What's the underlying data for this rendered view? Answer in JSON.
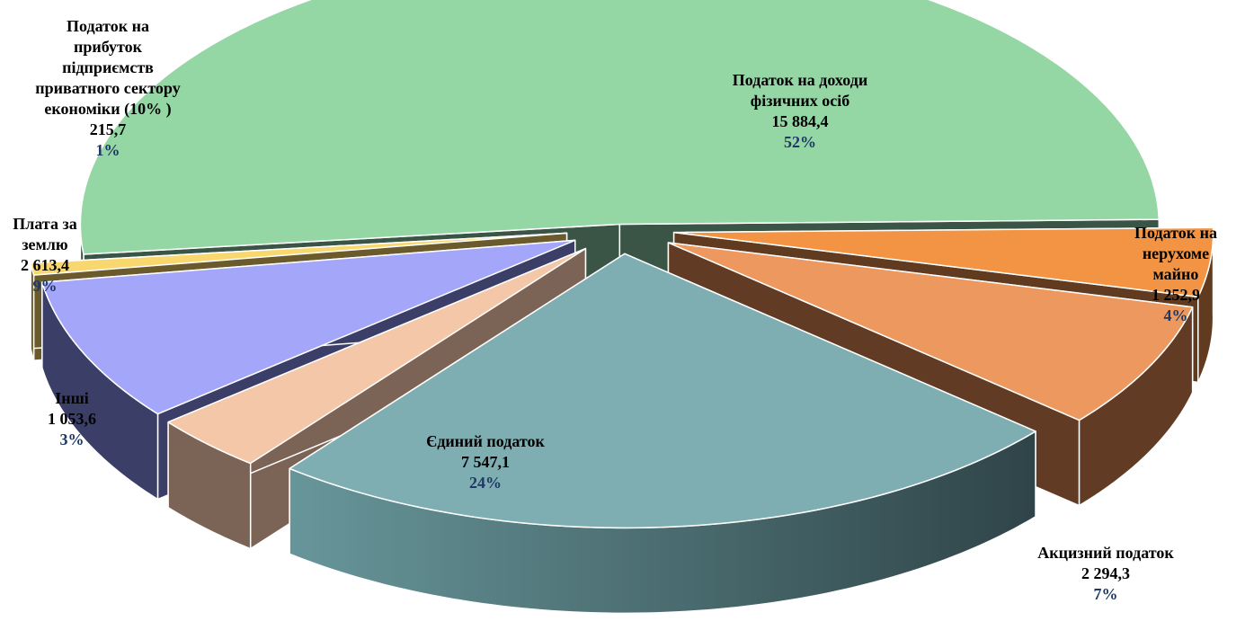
{
  "chart_data": {
    "type": "pie",
    "title": "",
    "slices": [
      {
        "name": "Податок на доходи фізичних осіб",
        "name_lines": [
          "Податок на доходи",
          "фізичних осіб"
        ],
        "value": 15884.4,
        "value_label": "15 884,4",
        "percent_label": "52%",
        "color": "#94D6A4",
        "side_color": "#3A5446"
      },
      {
        "name": "Податок на нерухоме майно",
        "name_lines": [
          "Податок на",
          "нерухоме",
          "майно"
        ],
        "value": 1252.9,
        "value_label": "1 252,9",
        "percent_label": "4%",
        "color": "#F29443",
        "side_color": "#613B1F"
      },
      {
        "name": "Акцизний податок",
        "name_lines": [
          "Акцизний податок"
        ],
        "value": 2294.3,
        "value_label": "2 294,3",
        "percent_label": "7%",
        "color": "#EC985E",
        "side_color": "#613B23"
      },
      {
        "name": "Єдиний податок",
        "name_lines": [
          "Єдиний податок"
        ],
        "value": 7547.1,
        "value_label": "7 547,1",
        "percent_label": "24%",
        "color": "#7EADB2",
        "side_color": "#456A6E"
      },
      {
        "name": "Інші",
        "name_lines": [
          "Інші"
        ],
        "value": 1053.6,
        "value_label": "1 053,6",
        "percent_label": "3%",
        "color": "#F3C7A8",
        "side_color": "#7B6355"
      },
      {
        "name": "Плата за землю",
        "name_lines": [
          "Плата за",
          "землю"
        ],
        "value": 2613.4,
        "value_label": "2 613,4",
        "percent_label": "9%",
        "color": "#A4A6FA",
        "side_color": "#3B3E66"
      },
      {
        "name": "Податок на прибуток підприємств приватного сектору економіки (10% )",
        "name_lines": [
          "Податок на",
          "прибуток",
          "підприємств",
          "приватного сектору",
          "економіки (10% )"
        ],
        "value": 215.7,
        "value_label": "215,7",
        "percent_label": "1%",
        "color": "#F8D86E",
        "side_color": "#6A5A2C"
      }
    ]
  }
}
